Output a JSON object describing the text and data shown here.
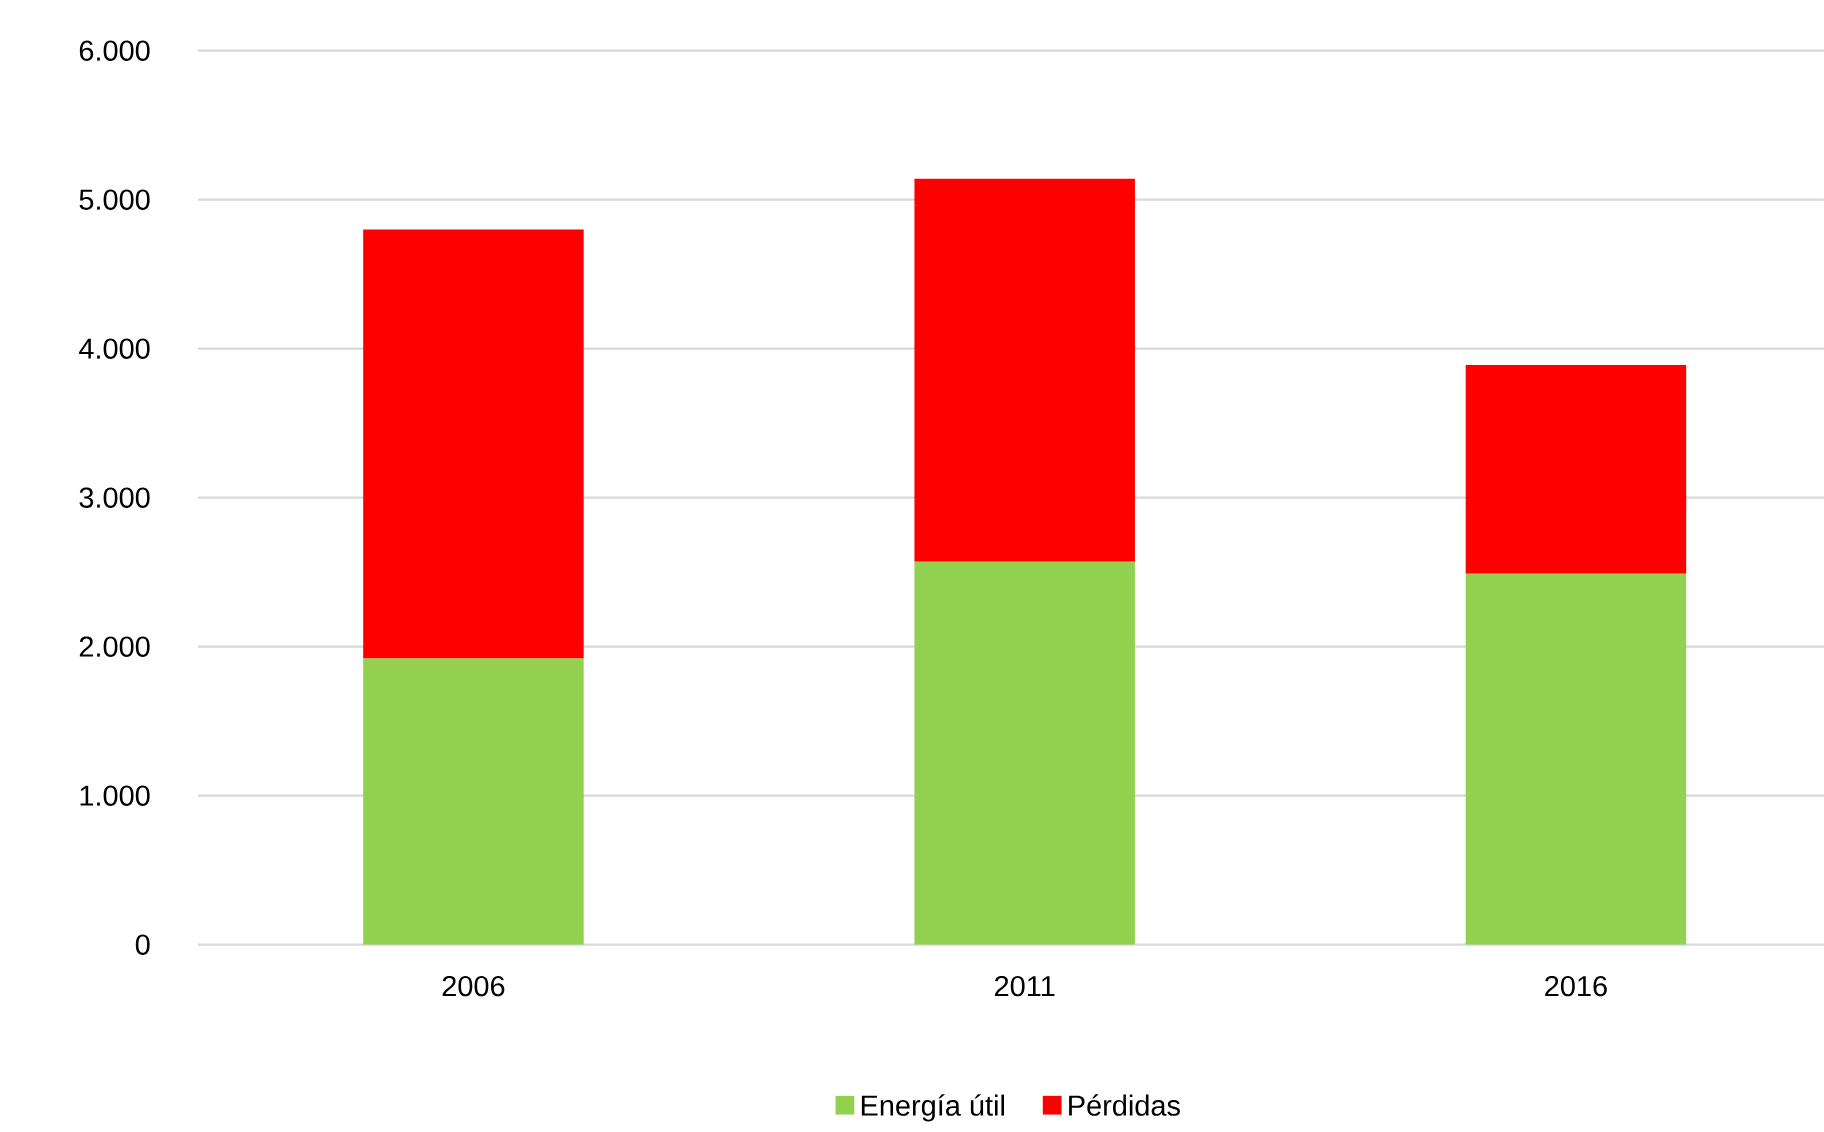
{
  "chart_data": {
    "type": "bar",
    "stacked": true,
    "categories": [
      "2006",
      "2011",
      "2016"
    ],
    "series": [
      {
        "name": "Energía útil",
        "color": "#92d050",
        "values": [
          1920,
          2570,
          2490
        ]
      },
      {
        "name": "Pérdidas",
        "color": "#ff0000",
        "values": [
          2880,
          2570,
          1400
        ]
      }
    ],
    "ylim": [
      0,
      6000
    ],
    "yticks": [
      {
        "value": 0,
        "label": "0"
      },
      {
        "value": 1000,
        "label": "1.000"
      },
      {
        "value": 2000,
        "label": "2.000"
      },
      {
        "value": 3000,
        "label": "3.000"
      },
      {
        "value": 4000,
        "label": "4.000"
      },
      {
        "value": 5000,
        "label": "5.000"
      },
      {
        "value": 6000,
        "label": "6.000"
      }
    ],
    "grid": "y",
    "legend": "bottom"
  }
}
